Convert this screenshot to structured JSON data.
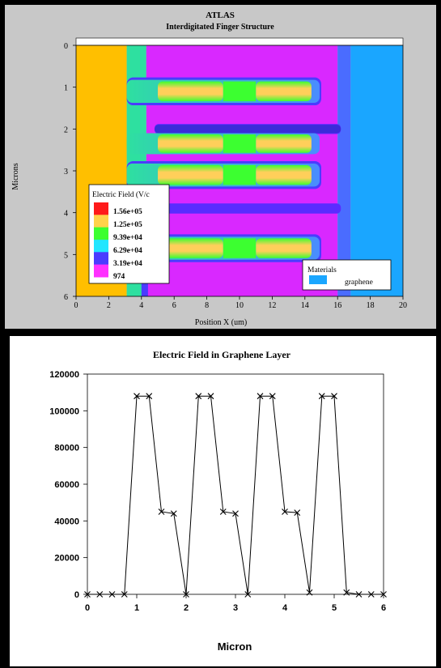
{
  "chart_data": [
    {
      "type": "heatmap",
      "title": "ATLAS",
      "subtitle": "Interdigitated Finger Structure",
      "xlabel": "Position X (um)",
      "ylabel": "Microns",
      "xlim": [
        0,
        20
      ],
      "ylim": [
        0,
        6
      ],
      "x_ticks": [
        "0",
        "2",
        "4",
        "6",
        "8",
        "10",
        "12",
        "14",
        "16",
        "18",
        "20"
      ],
      "y_ticks": [
        "0",
        "1",
        "2",
        "3",
        "4",
        "5",
        "6"
      ],
      "legend": {
        "title": "Electric Field (V/c",
        "entries": [
          {
            "label": "1.56e+05",
            "color": "#ff1a1a"
          },
          {
            "label": "1.25e+05",
            "color": "#ffd24a"
          },
          {
            "label": "9.39e+04",
            "color": "#3cff30"
          },
          {
            "label": "6.29e+04",
            "color": "#22e6ff"
          },
          {
            "label": "3.19e+04",
            "color": "#4a3cff"
          },
          {
            "label": "974",
            "color": "#ff30ff"
          }
        ]
      },
      "materials": {
        "title": "Materials",
        "entries": [
          {
            "label": "graphene",
            "color": "#1aa6ff"
          }
        ]
      },
      "colors": {
        "electrode": "#ffbf00",
        "low_field": "#d928ff",
        "graphene": "#1aa6ff",
        "high_field": "#ffcf5a",
        "mid_field": "#2ee0a0"
      }
    },
    {
      "type": "line",
      "title": "Electric Field in Graphene Layer",
      "xlabel": "Micron",
      "ylabel": "",
      "xlim": [
        0,
        6
      ],
      "ylim": [
        0,
        120000
      ],
      "x_ticks": [
        "0",
        "1",
        "2",
        "3",
        "4",
        "5",
        "6"
      ],
      "y_ticks": [
        "0",
        "20000",
        "40000",
        "60000",
        "80000",
        "100000",
        "120000"
      ],
      "x": [
        0,
        0.25,
        0.5,
        0.75,
        1.0,
        1.25,
        1.5,
        1.75,
        2.0,
        2.25,
        2.5,
        2.75,
        3.0,
        3.25,
        3.5,
        3.75,
        4.0,
        4.25,
        4.5,
        4.75,
        5.0,
        5.25,
        5.5,
        5.75,
        6.0
      ],
      "values": [
        0,
        0,
        0,
        0,
        108000,
        108000,
        45000,
        44000,
        0,
        108000,
        108000,
        45000,
        44000,
        0,
        108000,
        108000,
        45000,
        44500,
        1000,
        108000,
        108000,
        1000,
        0,
        0,
        0
      ]
    }
  ]
}
